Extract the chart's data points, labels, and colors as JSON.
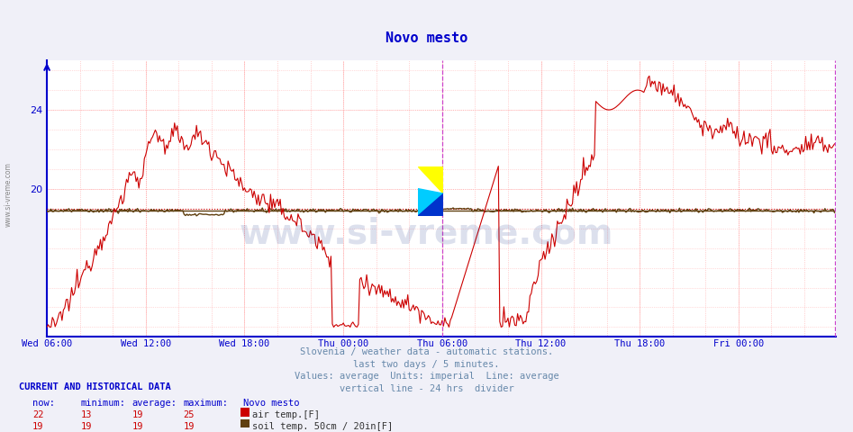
{
  "title": "Novo mesto",
  "title_color": "#0000cc",
  "bg_color": "#f0f0f8",
  "plot_bg_color": "#ffffff",
  "axis_color": "#0000cc",
  "grid_h_color": "#ffaaaa",
  "grid_v_major_color": "#ffaaaa",
  "grid_v_minor_color": "#ddaaaa",
  "xlabel_color": "#0000cc",
  "yticks": [
    20,
    24
  ],
  "ylim": [
    12.5,
    26.5
  ],
  "xlim": [
    0,
    575
  ],
  "xtick_labels": [
    "Wed 06:00",
    "Wed 12:00",
    "Wed 18:00",
    "Thu 00:00",
    "Thu 06:00",
    "Thu 12:00",
    "Thu 18:00",
    "Fri 00:00"
  ],
  "xtick_positions": [
    0,
    72,
    144,
    216,
    288,
    360,
    432,
    504
  ],
  "vline_24hr_x": 288,
  "vline_end_x": 574,
  "air_temp_color": "#cc0000",
  "soil_temp_color": "#604010",
  "avg_air_temp": 19.0,
  "avg_soil_temp": 18.9,
  "footer_text_line1": "Slovenia / weather data - automatic stations.",
  "footer_text_line2": "last two days / 5 minutes.",
  "footer_text_line3": "Values: average  Units: imperial  Line: average",
  "footer_text_line4": "vertical line - 24 hrs  divider",
  "footer_color": "#6688aa",
  "current_data_label": "CURRENT AND HISTORICAL DATA",
  "table_headers": [
    "now:",
    "minimum:",
    "average:",
    "maximum:",
    "Novo mesto"
  ],
  "air_row": [
    "22",
    "13",
    "19",
    "25",
    "air temp.[F]"
  ],
  "soil_row": [
    "19",
    "19",
    "19",
    "19",
    "soil temp. 50cm / 20in[F]"
  ],
  "watermark": "www.si-vreme.com"
}
